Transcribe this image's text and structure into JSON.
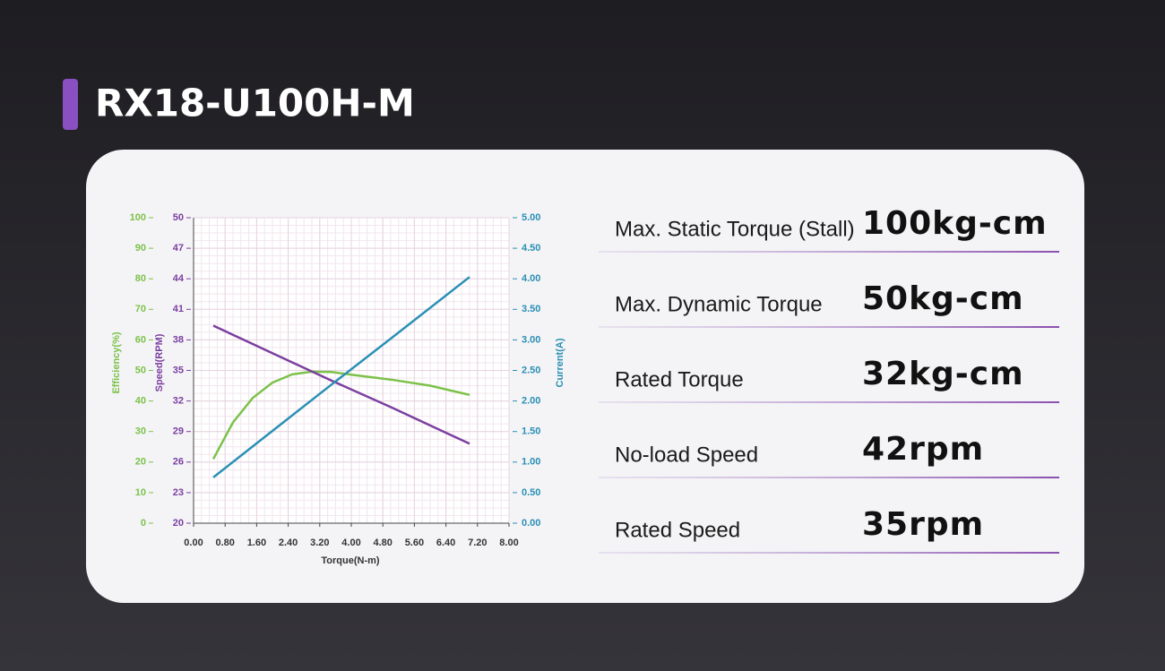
{
  "header": {
    "title": "RX18-U100H-M"
  },
  "chart_data": {
    "type": "line",
    "xlabel": "Torque(N-m)",
    "ylabel": "Efficiency(%)",
    "y2label": "Speed(RPM)",
    "y3label": "Current(A)",
    "xlim": [
      0,
      8
    ],
    "xticks": [
      {
        "value": 0,
        "label": "0.00"
      },
      {
        "value": 0.8,
        "label": "0.80"
      },
      {
        "value": 1.6,
        "label": "1.60"
      },
      {
        "value": 2.4,
        "label": "2.40"
      },
      {
        "value": 3.2,
        "label": "3.20"
      },
      {
        "value": 4,
        "label": "4.00"
      },
      {
        "value": 4.8,
        "label": "4.80"
      },
      {
        "value": 5.6,
        "label": "5.60"
      },
      {
        "value": 6.4,
        "label": "6.40"
      },
      {
        "value": 7.2,
        "label": "7.20"
      },
      {
        "value": 8,
        "label": "8.00"
      }
    ],
    "ylim": [
      0,
      100
    ],
    "yticks": [
      0,
      10,
      20,
      30,
      40,
      50,
      60,
      70,
      80,
      90,
      100
    ],
    "y2lim": [
      20,
      50
    ],
    "y2ticks": [
      20,
      23,
      26,
      29,
      32,
      35,
      38,
      41,
      44,
      47,
      50
    ],
    "y3lim": [
      0,
      5
    ],
    "y3ticks": [
      {
        "value": 0,
        "label": "0.00"
      },
      {
        "value": 0.5,
        "label": "0.50"
      },
      {
        "value": 1,
        "label": "1.00"
      },
      {
        "value": 1.5,
        "label": "1.50"
      },
      {
        "value": 2,
        "label": "2.00"
      },
      {
        "value": 2.5,
        "label": "2.50"
      },
      {
        "value": 3,
        "label": "3.00"
      },
      {
        "value": 3.5,
        "label": "3.50"
      },
      {
        "value": 4,
        "label": "4.00"
      },
      {
        "value": 4.5,
        "label": "4.50"
      },
      {
        "value": 5,
        "label": "5.00"
      }
    ],
    "grid": true,
    "series": [
      {
        "name": "Efficiency",
        "axis": "y",
        "color": "#7cc24a",
        "x": [
          0.5,
          1,
          1.5,
          2,
          2.5,
          3,
          3.5,
          4,
          5,
          6,
          7
        ],
        "values": [
          21,
          33,
          41,
          46,
          48.7,
          49.6,
          49.5,
          48.6,
          47,
          45,
          42
        ]
      },
      {
        "name": "Speed",
        "axis": "y2",
        "color": "#7b3fa0",
        "x": [
          0.5,
          2,
          3.5,
          5,
          7
        ],
        "values": [
          39.4,
          36.7,
          34,
          31.4,
          27.8
        ]
      },
      {
        "name": "Current",
        "axis": "y3",
        "color": "#2a8fb5",
        "x": [
          0.5,
          2,
          3.5,
          5,
          7
        ],
        "values": [
          0.75,
          1.51,
          2.27,
          3.02,
          4.03
        ]
      }
    ]
  },
  "specs": [
    {
      "label": "Max. Static Torque (Stall)",
      "value": "100kg-cm"
    },
    {
      "label": "Max. Dynamic Torque",
      "value": "50kg-cm"
    },
    {
      "label": "Rated Torque",
      "value": "32kg-cm"
    },
    {
      "label": "No-load Speed",
      "value": "42rpm"
    },
    {
      "label": "Rated Speed",
      "value": "35rpm"
    }
  ]
}
